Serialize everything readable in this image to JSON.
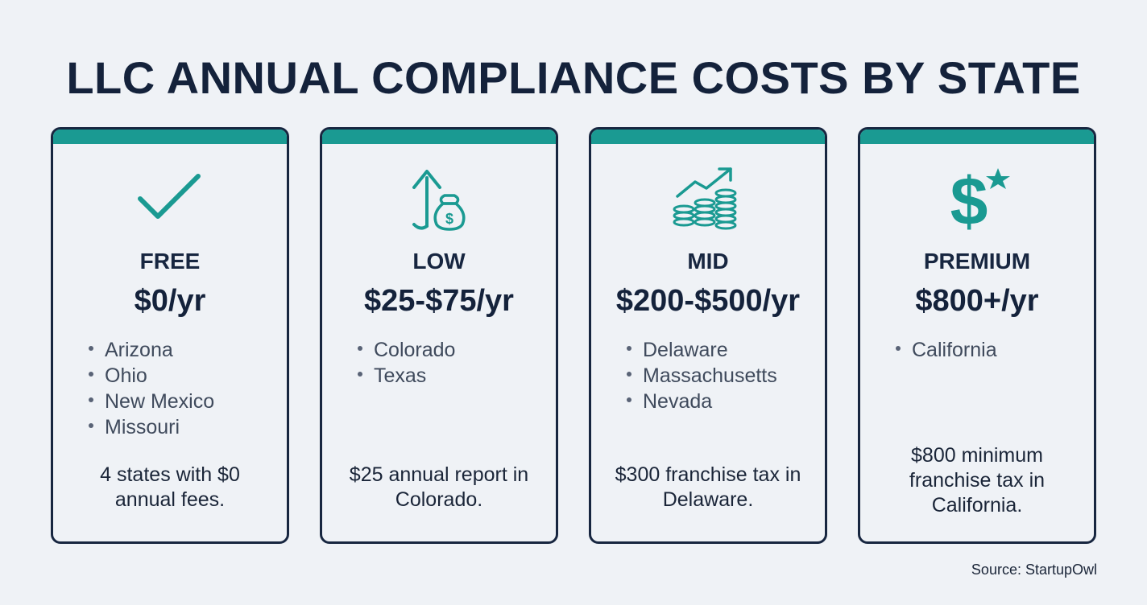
{
  "title": "LLC ANNUAL COMPLIANCE COSTS BY STATE",
  "accent_color": "#1a9a92",
  "cards": [
    {
      "icon": "checkmark-icon",
      "tier": "FREE",
      "price": "$0/yr",
      "states": [
        "Arizona",
        "Ohio",
        "New Mexico",
        "Missouri"
      ],
      "note": "4 states with $0 annual fees."
    },
    {
      "icon": "money-bag-arrow-up-icon",
      "tier": "LOW",
      "price": "$25-$75/yr",
      "states": [
        "Colorado",
        "Texas"
      ],
      "note": "$25 annual report in Colorado."
    },
    {
      "icon": "coin-stack-trend-icon",
      "tier": "MID",
      "price": "$200-$500/yr",
      "states": [
        "Delaware",
        "Massachusetts",
        "Nevada"
      ],
      "note": "$300 franchise tax in Delaware."
    },
    {
      "icon": "dollar-star-icon",
      "tier": "PREMIUM",
      "price": "$800+/yr",
      "states": [
        "California"
      ],
      "note": "$800 minimum franchise tax in California."
    }
  ],
  "source": "Source: StartupOwl"
}
